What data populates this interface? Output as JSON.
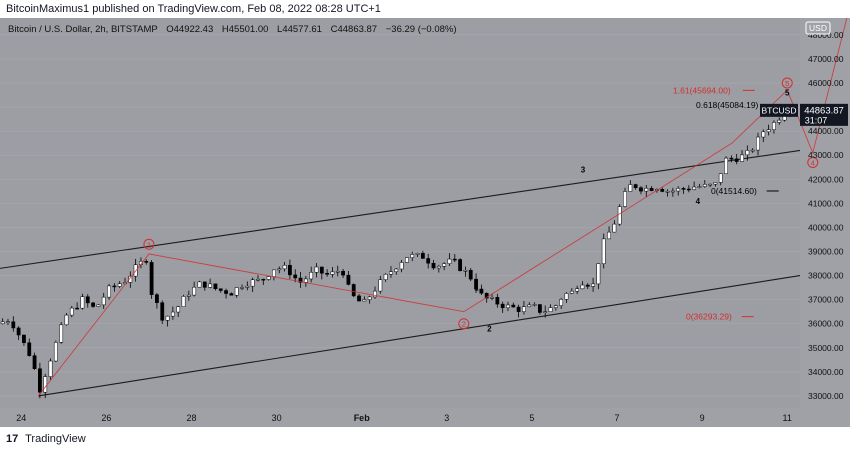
{
  "header": {
    "published_text": "BitcoinMaximus1 published on TradingView.com, Feb 08, 2022 08:28 UTC+1"
  },
  "legend": {
    "symbol": "Bitcoin / U.S. Dollar, 2h, BITSTAMP",
    "o_label": "O",
    "o_value": "44922.43",
    "h_label": "H",
    "h_value": "45501.00",
    "l_label": "L",
    "l_value": "44577.61",
    "c_label": "C",
    "c_value": "44863.87",
    "change": "−36.29 (−0.08%)"
  },
  "currency_badge": "USD",
  "price_tag": {
    "symbol": "BTCUSD",
    "value": "44863.87",
    "countdown": "31:07"
  },
  "footer": {
    "brand": "TradingView",
    "logo_text": "17"
  },
  "colors": {
    "background": "#9c9ea4",
    "axis_bg": "#9fa1a7",
    "candle_up": "#ffffff",
    "candle_down": "#000000",
    "channel": "#1b1b1b",
    "wave": "#d32f2f",
    "grid": "#a7a9ae"
  },
  "chart_data": {
    "type": "candlestick",
    "y_axis_ticks": [
      "33000.00",
      "34000.00",
      "35000.00",
      "36000.00",
      "37000.00",
      "38000.00",
      "39000.00",
      "40000.00",
      "41000.00",
      "42000.00",
      "43000.00",
      "44000.00",
      "45000.00",
      "46000.00",
      "47000.00",
      "48000.00"
    ],
    "ylim": [
      32500,
      48700
    ],
    "x_axis_ticks": [
      "24",
      "26",
      "28",
      "30",
      "Feb",
      "3",
      "5",
      "7",
      "9",
      "11"
    ],
    "xlim_days_from_jan24": [
      -0.5,
      18.3
    ],
    "price_path": [
      [
        -0.5,
        36000
      ],
      [
        -0.2,
        36200
      ],
      [
        0.3,
        34600
      ],
      [
        0.5,
        33300
      ],
      [
        0.8,
        34800
      ],
      [
        1.1,
        36300
      ],
      [
        1.5,
        37000
      ],
      [
        1.8,
        36600
      ],
      [
        2.1,
        37400
      ],
      [
        2.5,
        37800
      ],
      [
        2.8,
        38400
      ],
      [
        3.0,
        38700
      ],
      [
        3.1,
        37400
      ],
      [
        3.4,
        36200
      ],
      [
        3.7,
        36600
      ],
      [
        4.0,
        37300
      ],
      [
        4.3,
        37700
      ],
      [
        4.7,
        37400
      ],
      [
        5.0,
        37300
      ],
      [
        5.3,
        37700
      ],
      [
        5.7,
        37800
      ],
      [
        6.0,
        38300
      ],
      [
        6.3,
        38300
      ],
      [
        6.6,
        37700
      ],
      [
        7.0,
        38200
      ],
      [
        7.3,
        38000
      ],
      [
        7.6,
        38300
      ],
      [
        7.8,
        37200
      ],
      [
        8.1,
        36800
      ],
      [
        8.4,
        37500
      ],
      [
        8.7,
        38100
      ],
      [
        9.1,
        38800
      ],
      [
        9.5,
        38800
      ],
      [
        9.8,
        38400
      ],
      [
        10.2,
        38600
      ],
      [
        10.6,
        38000
      ],
      [
        10.9,
        37100
      ],
      [
        11.2,
        36900
      ],
      [
        11.5,
        36700
      ],
      [
        11.8,
        36600
      ],
      [
        12.1,
        36700
      ],
      [
        12.3,
        36500
      ],
      [
        12.6,
        36700
      ],
      [
        12.8,
        37200
      ],
      [
        13.0,
        37300
      ],
      [
        13.2,
        37800
      ],
      [
        13.5,
        37600
      ],
      [
        13.7,
        39200
      ],
      [
        14.0,
        40200
      ],
      [
        14.2,
        41200
      ],
      [
        14.4,
        41800
      ],
      [
        14.7,
        41600
      ],
      [
        15.0,
        41700
      ],
      [
        15.3,
        41500
      ],
      [
        15.6,
        41600
      ],
      [
        15.9,
        41700
      ],
      [
        16.2,
        41700
      ],
      [
        16.4,
        41800
      ],
      [
        16.6,
        42800
      ],
      [
        16.9,
        42900
      ],
      [
        17.1,
        43000
      ],
      [
        17.3,
        43400
      ],
      [
        17.5,
        44000
      ],
      [
        17.8,
        44400
      ],
      [
        18.0,
        44900
      ]
    ],
    "channel_upper": [
      [
        -0.5,
        38300
      ],
      [
        18.3,
        43200
      ]
    ],
    "channel_lower": [
      [
        0.4,
        33000
      ],
      [
        18.3,
        38000
      ]
    ],
    "wave_path": [
      [
        0.4,
        33000
      ],
      [
        3.0,
        38900
      ],
      [
        10.4,
        36500
      ],
      [
        16.7,
        43500
      ],
      [
        18.0,
        45700
      ]
    ],
    "wave_projection": [
      [
        18.0,
        45700
      ],
      [
        18.6,
        43100
      ],
      [
        19.4,
        48700
      ]
    ],
    "wave_labels": [
      {
        "label": "1",
        "x": 3.0,
        "y": 39300,
        "style": "circled"
      },
      {
        "label": "2",
        "x": 10.4,
        "y": 36000,
        "style": "circled"
      },
      {
        "label": "5",
        "x": 18.0,
        "y": 46000,
        "style": "circled"
      },
      {
        "label": "4",
        "x": 18.6,
        "y": 42700,
        "style": "circled"
      },
      {
        "label": "1",
        "x": 10.7,
        "y": 37500,
        "style": "plain"
      },
      {
        "label": "2",
        "x": 11.0,
        "y": 35800,
        "style": "plain"
      },
      {
        "label": "3",
        "x": 13.2,
        "y": 42400,
        "style": "plain"
      },
      {
        "label": "4",
        "x": 15.9,
        "y": 41100,
        "style": "plain"
      },
      {
        "label": "5",
        "x": 18.0,
        "y": 45600,
        "style": "plain"
      }
    ],
    "fib_levels": [
      {
        "label": "1.61(45694.00)",
        "price": 45694.0,
        "color": "#d32f2f"
      },
      {
        "label": "0.618(45084.19)",
        "price": 45084.19,
        "color": "#000000"
      },
      {
        "label": "0(41514.60)",
        "price": 41514.6,
        "color": "#000000"
      },
      {
        "label": "0(36293.29)",
        "price": 36293.29,
        "color": "#d32f2f"
      }
    ],
    "last_price": 44863.87
  }
}
